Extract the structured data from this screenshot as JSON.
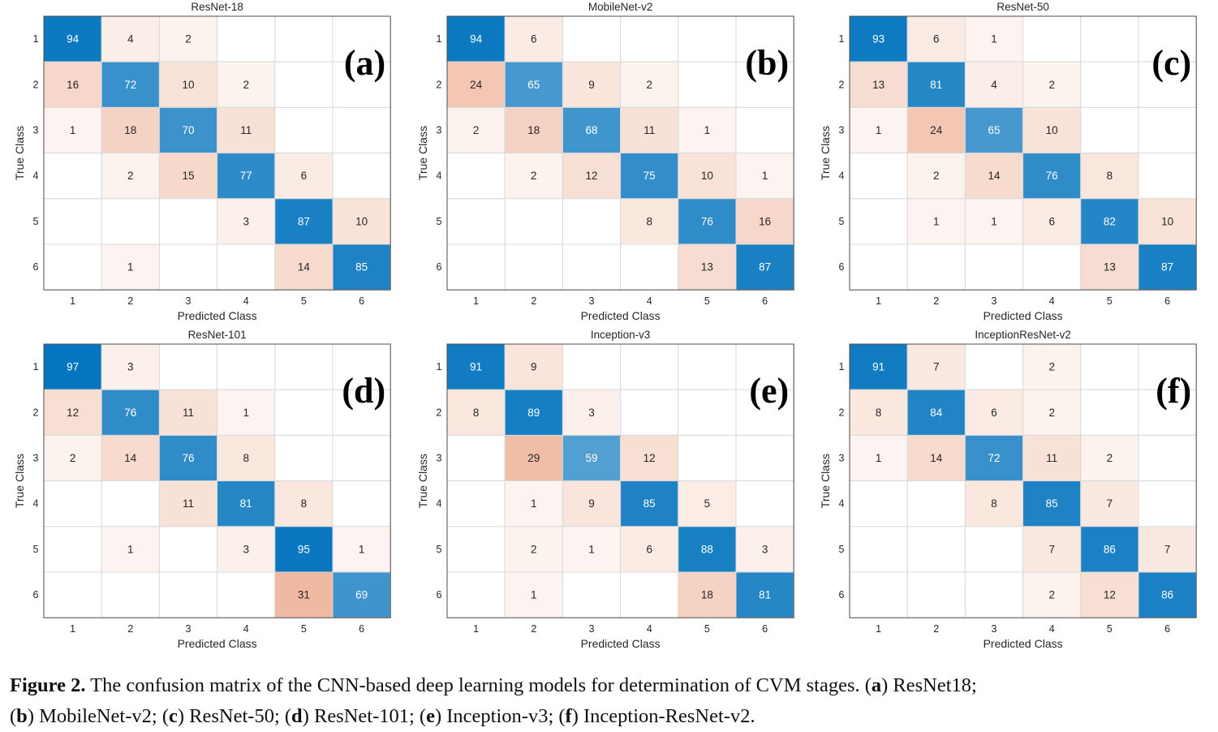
{
  "chart_data": [
    {
      "type": "heatmap",
      "panel_label": "(a)",
      "title": "ResNet-18",
      "xlabel": "Predicted Class",
      "ylabel": "True Class",
      "categories": [
        "1",
        "2",
        "3",
        "4",
        "5",
        "6"
      ],
      "matrix": [
        [
          94,
          4,
          2,
          null,
          null,
          null
        ],
        [
          16,
          72,
          10,
          2,
          null,
          null
        ],
        [
          1,
          18,
          70,
          11,
          null,
          null
        ],
        [
          null,
          2,
          15,
          77,
          6,
          null
        ],
        [
          null,
          null,
          null,
          3,
          87,
          10
        ],
        [
          null,
          1,
          null,
          null,
          14,
          85
        ]
      ]
    },
    {
      "type": "heatmap",
      "panel_label": "(b)",
      "title": "MobileNet-v2",
      "xlabel": "Predicted Class",
      "ylabel": "True Class",
      "categories": [
        "1",
        "2",
        "3",
        "4",
        "5",
        "6"
      ],
      "matrix": [
        [
          94,
          6,
          null,
          null,
          null,
          null
        ],
        [
          24,
          65,
          9,
          2,
          null,
          null
        ],
        [
          2,
          18,
          68,
          11,
          1,
          null
        ],
        [
          null,
          2,
          12,
          75,
          10,
          1
        ],
        [
          null,
          null,
          null,
          8,
          76,
          16
        ],
        [
          null,
          null,
          null,
          null,
          13,
          87
        ]
      ]
    },
    {
      "type": "heatmap",
      "panel_label": "(c)",
      "title": "ResNet-50",
      "xlabel": "Predicted Class",
      "ylabel": "True Class",
      "categories": [
        "1",
        "2",
        "3",
        "4",
        "5",
        "6"
      ],
      "matrix": [
        [
          93,
          6,
          1,
          null,
          null,
          null
        ],
        [
          13,
          81,
          4,
          2,
          null,
          null
        ],
        [
          1,
          24,
          65,
          10,
          null,
          null
        ],
        [
          null,
          2,
          14,
          76,
          8,
          null
        ],
        [
          null,
          1,
          1,
          6,
          82,
          10
        ],
        [
          null,
          null,
          null,
          null,
          13,
          87
        ]
      ]
    },
    {
      "type": "heatmap",
      "panel_label": "(d)",
      "title": "ResNet-101",
      "xlabel": "Predicted Class",
      "ylabel": "True Class",
      "categories": [
        "1",
        "2",
        "3",
        "4",
        "5",
        "6"
      ],
      "matrix": [
        [
          97,
          3,
          null,
          null,
          null,
          null
        ],
        [
          12,
          76,
          11,
          1,
          null,
          null
        ],
        [
          2,
          14,
          76,
          8,
          null,
          null
        ],
        [
          null,
          null,
          11,
          81,
          8,
          null
        ],
        [
          null,
          1,
          null,
          3,
          95,
          1
        ],
        [
          null,
          null,
          null,
          null,
          31,
          69
        ]
      ]
    },
    {
      "type": "heatmap",
      "panel_label": "(e)",
      "title": "Inception-v3",
      "xlabel": "Predicted Class",
      "ylabel": "True Class",
      "categories": [
        "1",
        "2",
        "3",
        "4",
        "5",
        "6"
      ],
      "matrix": [
        [
          91,
          9,
          null,
          null,
          null,
          null
        ],
        [
          8,
          89,
          3,
          null,
          null,
          null
        ],
        [
          null,
          29,
          59,
          12,
          null,
          null
        ],
        [
          null,
          1,
          9,
          85,
          5,
          null
        ],
        [
          null,
          2,
          1,
          6,
          88,
          3
        ],
        [
          null,
          1,
          null,
          null,
          18,
          81
        ]
      ]
    },
    {
      "type": "heatmap",
      "panel_label": "(f)",
      "title": "InceptionResNet-v2",
      "xlabel": "Predicted Class",
      "ylabel": "True Class",
      "categories": [
        "1",
        "2",
        "3",
        "4",
        "5",
        "6"
      ],
      "matrix": [
        [
          91,
          7,
          null,
          2,
          null,
          null
        ],
        [
          8,
          84,
          6,
          2,
          null,
          null
        ],
        [
          1,
          14,
          72,
          11,
          2,
          null
        ],
        [
          null,
          null,
          8,
          85,
          7,
          null
        ],
        [
          null,
          null,
          null,
          7,
          86,
          7
        ],
        [
          null,
          null,
          null,
          2,
          12,
          86
        ]
      ]
    }
  ],
  "caption": {
    "label": "Figure 2.",
    "line1_text": " The confusion matrix of the CNN-based deep learning models for determination of CVM stages. (",
    "items": [
      {
        "letter": "a",
        "text": ") ResNet18;"
      },
      {
        "letter": "b",
        "text": ") MobileNet-v2; ("
      },
      {
        "letter": "c",
        "text": ") ResNet-50; ("
      },
      {
        "letter": "d",
        "text": ") ResNet-101; ("
      },
      {
        "letter": "e",
        "text": ") Inception-v3; ("
      },
      {
        "letter": "f",
        "text": ") Inception-ResNet-v2."
      }
    ]
  },
  "colors": {
    "diagonal": "#0072bd",
    "offdiagonal": "#d95319",
    "grid": "#d9d9d9",
    "text": "#262626"
  }
}
